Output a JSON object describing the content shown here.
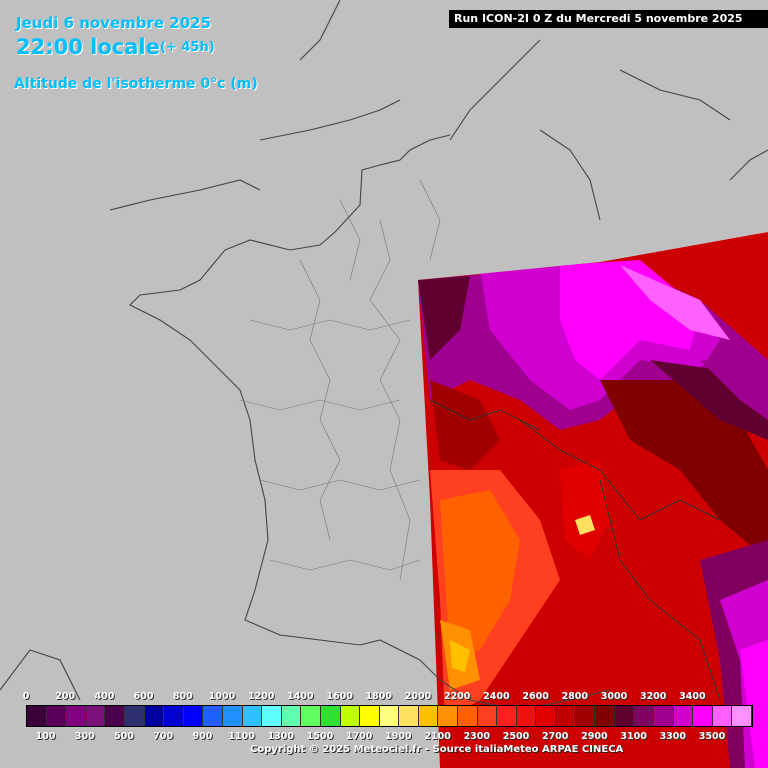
{
  "header": {
    "date": "Jeudi 6 novembre 2025",
    "time": "22:00 locale",
    "offset": "(+ 45h)",
    "variable": "Altitude de l'isotherme 0°c (m)"
  },
  "run_label": "Run ICON-2I 0 Z du Mercredi 5 novembre 2025",
  "legend": {
    "upper_labels": [
      "0",
      "200",
      "400",
      "600",
      "800",
      "1000",
      "1200",
      "1400",
      "1600",
      "1800",
      "2000",
      "2200",
      "2400",
      "2600",
      "2800",
      "3000",
      "3200",
      "3400"
    ],
    "lower_labels": [
      "100",
      "300",
      "500",
      "700",
      "900",
      "1100",
      "1300",
      "1500",
      "1700",
      "1900",
      "2100",
      "2300",
      "2500",
      "2700",
      "2900",
      "3100",
      "3300",
      "3500"
    ],
    "colors": [
      "#3a003a",
      "#5a005a",
      "#800080",
      "#7a107a",
      "#4a004a",
      "#303070",
      "#0000a0",
      "#0000d0",
      "#0000ff",
      "#2060ff",
      "#2090ff",
      "#30c0ff",
      "#60ffff",
      "#60ffb0",
      "#60ff60",
      "#30e030",
      "#c0ff00",
      "#ffff00",
      "#ffff80",
      "#ffe060",
      "#ffc000",
      "#ff9000",
      "#ff6000",
      "#ff4020",
      "#ff2020",
      "#f01010",
      "#e00000",
      "#c00000",
      "#a00000",
      "#800000",
      "#600030",
      "#800060",
      "#a00090",
      "#d000d0",
      "#ff00ff",
      "#ff60ff",
      "#ff90ff"
    ]
  },
  "copyright": "Copyright © 2025 Meteociel.fr - Source italiaMeteo ARPAE CINECA"
}
